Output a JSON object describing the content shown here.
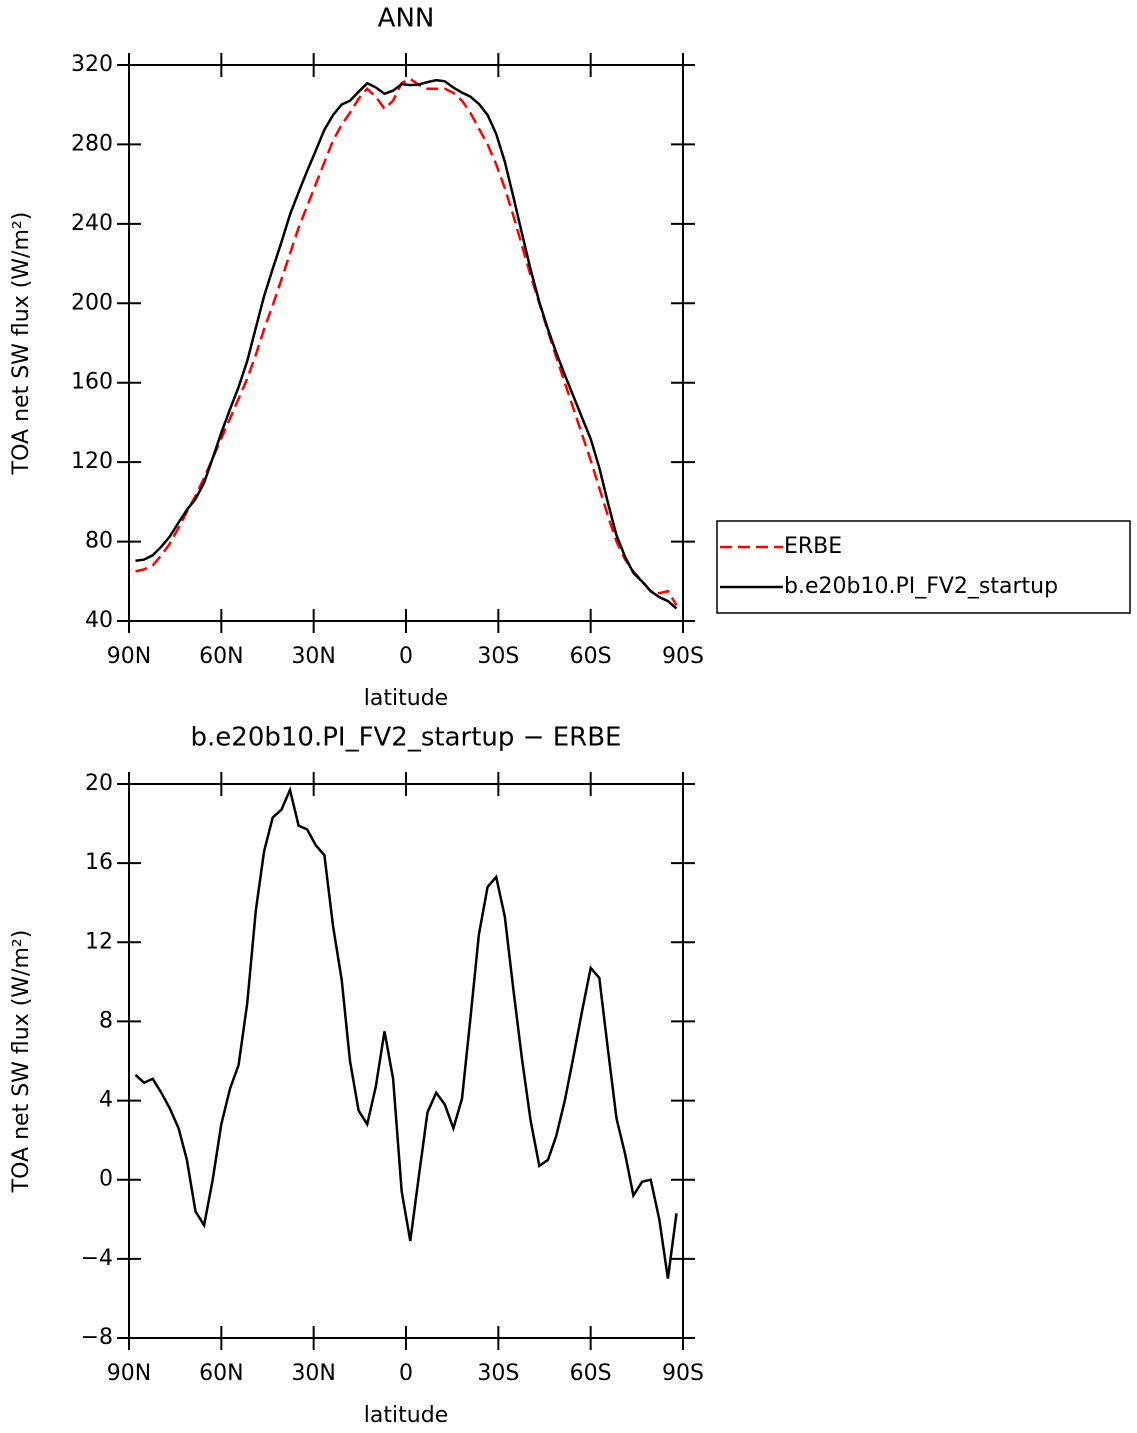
{
  "chart_data": [
    {
      "type": "line",
      "title": "ANN",
      "xlabel": "latitude",
      "ylabel": "TOA net SW flux (W/m²)",
      "x": [
        87.9,
        85.1,
        82.3,
        79.5,
        76.7,
        73.9,
        71.2,
        68.4,
        65.6,
        62.8,
        60.0,
        57.2,
        54.4,
        51.6,
        48.8,
        46.1,
        43.3,
        40.5,
        37.7,
        34.9,
        32.1,
        29.3,
        26.5,
        23.7,
        20.9,
        18.2,
        15.4,
        12.6,
        9.8,
        7.0,
        4.2,
        1.4,
        -1.4,
        -4.2,
        -7.0,
        -9.8,
        -12.6,
        -15.4,
        -18.2,
        -20.9,
        -23.7,
        -26.5,
        -29.3,
        -32.1,
        -34.9,
        -37.7,
        -40.5,
        -43.3,
        -46.1,
        -48.8,
        -51.6,
        -54.4,
        -57.2,
        -60.0,
        -62.8,
        -65.6,
        -68.4,
        -71.2,
        -73.9,
        -76.7,
        -79.5,
        -82.3,
        -85.1,
        -87.9
      ],
      "series": [
        {
          "name": "ERBE",
          "color": "#ff0000",
          "dashed": true,
          "values": [
            65,
            66,
            68,
            73,
            79,
            87,
            95,
            103,
            112,
            122,
            132,
            142,
            152,
            162,
            174,
            187,
            199,
            212,
            225,
            238,
            249,
            260,
            271,
            282,
            290,
            296,
            303,
            308,
            304,
            298,
            302,
            311,
            313,
            310,
            308,
            308,
            308,
            306,
            302,
            296,
            288,
            280,
            270,
            258,
            244,
            229,
            214,
            200,
            186,
            173,
            160,
            147,
            134,
            121,
            107,
            93,
            80,
            71,
            65,
            60,
            55,
            54,
            55,
            48
          ]
        },
        {
          "name": "b.e20b10.PI_FV2_startup",
          "color": "#000000",
          "dashed": false,
          "values": [
            70.3,
            70.9,
            73.1,
            77.4,
            82.6,
            89.6,
            96.0,
            101.4,
            109.7,
            122.0,
            134.8,
            146.6,
            157.8,
            170.9,
            187.6,
            203.6,
            217.3,
            230.7,
            244.7,
            255.9,
            266.7,
            276.9,
            287.4,
            294.8,
            300.1,
            302.0,
            306.5,
            310.8,
            308.7,
            305.5,
            307.1,
            310.4,
            309.9,
            310.2,
            311.4,
            312.4,
            311.8,
            308.6,
            306.1,
            304.1,
            300.4,
            294.8,
            285.3,
            271.3,
            253.6,
            235.1,
            217.0,
            200.7,
            187.0,
            175.2,
            164.0,
            153.2,
            142.5,
            131.7,
            117.2,
            99.6,
            83.1,
            72.3,
            64.2,
            59.9,
            55.0,
            52.0,
            50.0,
            46.3
          ]
        }
      ],
      "xlim": [
        90,
        -90
      ],
      "xticks": [
        {
          "value": 90,
          "label": "90N"
        },
        {
          "value": 60,
          "label": "60N"
        },
        {
          "value": 30,
          "label": "30N"
        },
        0,
        {
          "value": -30,
          "label": "30S"
        },
        {
          "value": -60,
          "label": "60S"
        },
        {
          "value": -90,
          "label": "90S"
        }
      ],
      "ylim": [
        40,
        320
      ],
      "yticks": [
        40,
        80,
        120,
        160,
        200,
        240,
        280,
        320
      ],
      "legend": "right"
    },
    {
      "type": "line",
      "title": "b.e20b10.PI_FV2_startup − ERBE",
      "xlabel": "latitude",
      "ylabel": "TOA net SW flux (W/m²)",
      "x": [
        87.9,
        85.1,
        82.3,
        79.5,
        76.7,
        73.9,
        71.2,
        68.4,
        65.6,
        62.8,
        60.0,
        57.2,
        54.4,
        51.6,
        48.8,
        46.1,
        43.3,
        40.5,
        37.7,
        34.9,
        32.1,
        29.3,
        26.5,
        23.7,
        20.9,
        18.2,
        15.4,
        12.6,
        9.8,
        7.0,
        4.2,
        1.4,
        -1.4,
        -4.2,
        -7.0,
        -9.8,
        -12.6,
        -15.4,
        -18.2,
        -20.9,
        -23.7,
        -26.5,
        -29.3,
        -32.1,
        -34.9,
        -37.7,
        -40.5,
        -43.3,
        -46.1,
        -48.8,
        -51.6,
        -54.4,
        -57.2,
        -60.0,
        -62.8,
        -65.6,
        -68.4,
        -71.2,
        -73.9,
        -76.7,
        -79.5,
        -82.3,
        -85.1,
        -87.9
      ],
      "series": [
        {
          "color": "#000000",
          "dashed": false,
          "values": [
            5.3,
            4.9,
            5.1,
            4.4,
            3.6,
            2.6,
            1.0,
            -1.6,
            -2.3,
            0,
            2.8,
            4.6,
            5.8,
            8.9,
            13.6,
            16.6,
            18.3,
            18.7,
            19.7,
            17.9,
            17.7,
            16.9,
            16.4,
            12.8,
            10.1,
            6.0,
            3.5,
            2.8,
            4.7,
            7.5,
            5.1,
            -0.6,
            -3.1,
            0.2,
            3.4,
            4.4,
            3.8,
            2.6,
            4.1,
            8.1,
            12.4,
            14.8,
            15.3,
            13.3,
            9.6,
            6.1,
            3.0,
            0.7,
            1.0,
            2.2,
            4.0,
            6.2,
            8.5,
            10.7,
            10.2,
            6.6,
            3.1,
            1.3,
            -0.8,
            -0.1,
            0.0,
            -2.0,
            -5.0,
            -1.7
          ]
        }
      ],
      "xlim": [
        90,
        -90
      ],
      "xticks": [
        {
          "value": 90,
          "label": "90N"
        },
        {
          "value": 60,
          "label": "60N"
        },
        {
          "value": 30,
          "label": "30N"
        },
        0,
        {
          "value": -30,
          "label": "30S"
        },
        {
          "value": -60,
          "label": "60S"
        },
        {
          "value": -90,
          "label": "90S"
        }
      ],
      "ylim": [
        -8,
        20
      ],
      "yticks": [
        {
          "value": -8,
          "label": "−8"
        },
        {
          "value": -4,
          "label": "−4"
        },
        0,
        4,
        8,
        12,
        16,
        20
      ]
    }
  ]
}
